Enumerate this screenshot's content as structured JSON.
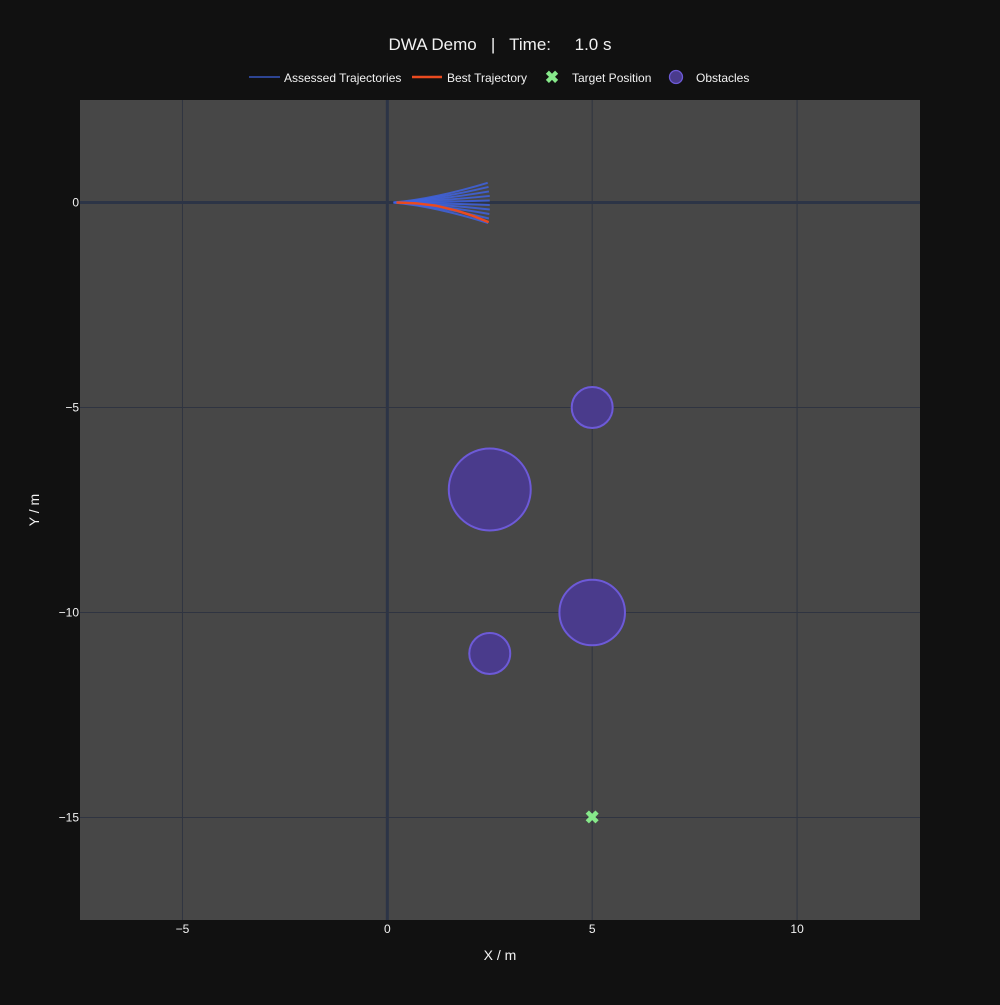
{
  "colors": {
    "page_background": "#111111",
    "plot_background": "#474747",
    "grid": "#2f3441",
    "zero_line": "#2c3446",
    "text": "#f2f2f2",
    "assessed": "#3f63e0",
    "best": "#ea4a1f",
    "target": "#86e88a",
    "obstacle_fill": "#4a3b8c",
    "obstacle_edge": "#6d5ad8"
  },
  "chart_data": {
    "type": "scatter",
    "title": "DWA Demo   |   Time:     1.0 s",
    "xlabel": "X / m",
    "ylabel": "Y / m",
    "xlim": [
      -7.5,
      13
    ],
    "ylim": [
      -17.5,
      2.5
    ],
    "x_ticks": [
      -5,
      0,
      5,
      10
    ],
    "y_ticks": [
      0,
      -5,
      -10,
      -15
    ],
    "x_tick_labels": [
      "−5",
      "0",
      "5",
      "10"
    ],
    "y_tick_labels": [
      "0",
      "−5",
      "−10",
      "−15"
    ],
    "grid": true,
    "equal_aspect": true,
    "legend": {
      "placement": "top-center",
      "entries": [
        "Assessed Trajectories",
        "Best Trajectory",
        "Target Position",
        "Obstacles"
      ]
    },
    "robot_start": [
      0.15,
      0.0
    ],
    "assessed_trajectories": {
      "name": "Assessed Trajectories",
      "end_points": [
        [
          2.45,
          0.48
        ],
        [
          2.47,
          0.38
        ],
        [
          2.48,
          0.27
        ],
        [
          2.5,
          0.16
        ],
        [
          2.5,
          0.05
        ],
        [
          2.5,
          -0.06
        ],
        [
          2.5,
          -0.17
        ],
        [
          2.49,
          -0.28
        ],
        [
          2.48,
          -0.39
        ],
        [
          2.46,
          -0.5
        ]
      ]
    },
    "best_trajectory": {
      "name": "Best Trajectory",
      "points": [
        [
          0.25,
          0.0
        ],
        [
          0.7,
          -0.02
        ],
        [
          1.2,
          -0.08
        ],
        [
          1.7,
          -0.2
        ],
        [
          2.1,
          -0.33
        ],
        [
          2.45,
          -0.47
        ]
      ]
    },
    "target": {
      "name": "Target Position",
      "x": 5,
      "y": -15
    },
    "obstacles": {
      "name": "Obstacles",
      "circles": [
        {
          "x": 5,
          "y": -5,
          "r": 0.5
        },
        {
          "x": 2.5,
          "y": -7,
          "r": 1.0
        },
        {
          "x": 5,
          "y": -10,
          "r": 0.8
        },
        {
          "x": 2.5,
          "y": -11,
          "r": 0.5
        }
      ]
    }
  }
}
